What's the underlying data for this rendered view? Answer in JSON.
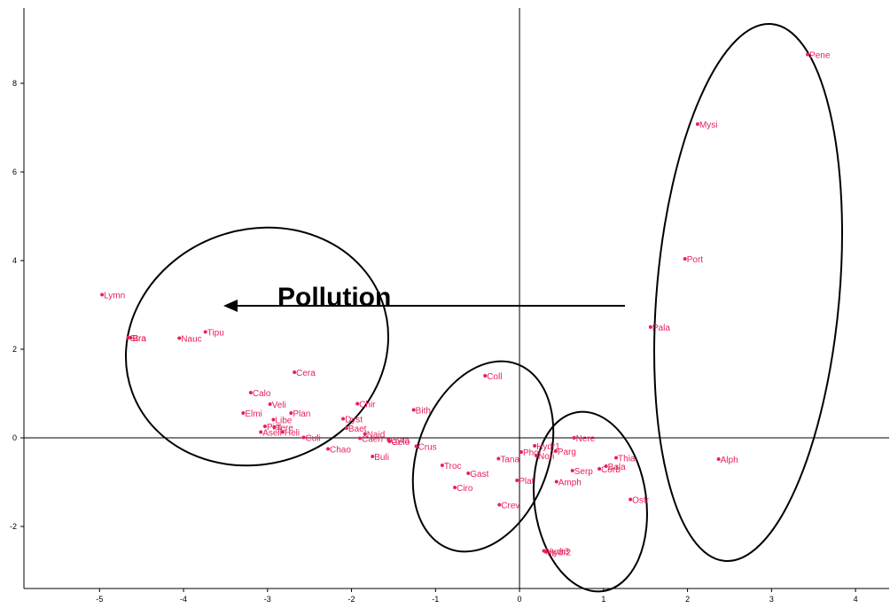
{
  "chart_data": {
    "type": "scatter",
    "title": "",
    "xlabel": "",
    "ylabel": "",
    "xlim": [
      -5.9,
      4.4
    ],
    "ylim": [
      -3.4,
      9.7
    ],
    "xticks": [
      -5,
      -4,
      -3,
      -2,
      -1,
      0,
      1,
      2,
      3,
      4
    ],
    "yticks": [
      -2,
      0,
      2,
      4,
      6,
      8
    ],
    "grid": false,
    "axes_through_origin": true,
    "point_color": "#e8205a",
    "label_color": "#e8205a",
    "points": [
      {
        "label": "Pene",
        "x": 3.43,
        "y": 8.65
      },
      {
        "label": "Mysi",
        "x": 2.12,
        "y": 7.08
      },
      {
        "label": "Port",
        "x": 1.97,
        "y": 4.04
      },
      {
        "label": "Pala",
        "x": 1.56,
        "y": 2.5
      },
      {
        "label": "Alph",
        "x": 2.37,
        "y": -0.48
      },
      {
        "label": "Lymn",
        "x": -4.97,
        "y": 3.23
      },
      {
        "label": "Stra",
        "x": -4.66,
        "y": 2.26
      },
      {
        "label": "Bra",
        "x": -4.63,
        "y": 2.26
      },
      {
        "label": "Nauc",
        "x": -4.05,
        "y": 2.25
      },
      {
        "label": "Tipu",
        "x": -3.74,
        "y": 2.39
      },
      {
        "label": "Cera",
        "x": -2.68,
        "y": 1.48
      },
      {
        "label": "Calo",
        "x": -3.2,
        "y": 1.02
      },
      {
        "label": "Veli",
        "x": -2.97,
        "y": 0.76
      },
      {
        "label": "Chir",
        "x": -1.93,
        "y": 0.77
      },
      {
        "label": "Elmi",
        "x": -3.29,
        "y": 0.56
      },
      {
        "label": "Plan",
        "x": -2.72,
        "y": 0.56
      },
      {
        "label": "Libe",
        "x": -2.93,
        "y": 0.41
      },
      {
        "label": "Dyst",
        "x": -2.1,
        "y": 0.43
      },
      {
        "label": "Bith",
        "x": -1.26,
        "y": 0.63
      },
      {
        "label": "Coll",
        "x": -0.41,
        "y": 1.4
      },
      {
        "label": "Pisi",
        "x": -3.03,
        "y": 0.26
      },
      {
        "label": "Tere",
        "x": -2.92,
        "y": 0.24
      },
      {
        "label": "Baet",
        "x": -2.06,
        "y": 0.22
      },
      {
        "label": "Asell",
        "x": -3.08,
        "y": 0.13
      },
      {
        "label": "Heli",
        "x": -2.82,
        "y": 0.13
      },
      {
        "label": "Naid",
        "x": -1.84,
        "y": 0.09
      },
      {
        "label": "Culi",
        "x": -2.57,
        "y": 0.01
      },
      {
        "label": "Caen",
        "x": -1.9,
        "y": -0.01
      },
      {
        "label": "Gyra",
        "x": -1.56,
        "y": -0.04
      },
      {
        "label": "Gelo",
        "x": -1.55,
        "y": -0.08
      },
      {
        "label": "Crus",
        "x": -1.23,
        "y": -0.19
      },
      {
        "label": "Chao",
        "x": -2.28,
        "y": -0.25
      },
      {
        "label": "Buli",
        "x": -1.75,
        "y": -0.42
      },
      {
        "label": "Troc",
        "x": -0.92,
        "y": -0.62
      },
      {
        "label": "Gast",
        "x": -0.61,
        "y": -0.8
      },
      {
        "label": "Tana",
        "x": -0.25,
        "y": -0.47
      },
      {
        "label": "Hydr1",
        "x": 0.18,
        "y": -0.18
      },
      {
        "label": "Phol",
        "x": 0.02,
        "y": -0.32
      },
      {
        "label": "Nere",
        "x": 0.65,
        "y": 0.0
      },
      {
        "label": "Parg",
        "x": 0.43,
        "y": -0.3
      },
      {
        "label": "Nori",
        "x": 0.2,
        "y": -0.4
      },
      {
        "label": "Thia",
        "x": 1.15,
        "y": -0.45
      },
      {
        "label": "Serp",
        "x": 0.63,
        "y": -0.74
      },
      {
        "label": "Corb",
        "x": 0.95,
        "y": -0.7
      },
      {
        "label": "Bala",
        "x": 1.03,
        "y": -0.64
      },
      {
        "label": "Plat",
        "x": -0.03,
        "y": -0.96
      },
      {
        "label": "Amph",
        "x": 0.44,
        "y": -0.99
      },
      {
        "label": "Ciro",
        "x": -0.77,
        "y": -1.12
      },
      {
        "label": "Ostr",
        "x": 1.32,
        "y": -1.39
      },
      {
        "label": "Crev",
        "x": -0.24,
        "y": -1.51
      },
      {
        "label": "Hydr3",
        "x": 0.29,
        "y": -2.55
      },
      {
        "label": "Hydr2",
        "x": 0.31,
        "y": -2.57
      }
    ],
    "annotations": {
      "arrow_label": "Pollution"
    }
  }
}
